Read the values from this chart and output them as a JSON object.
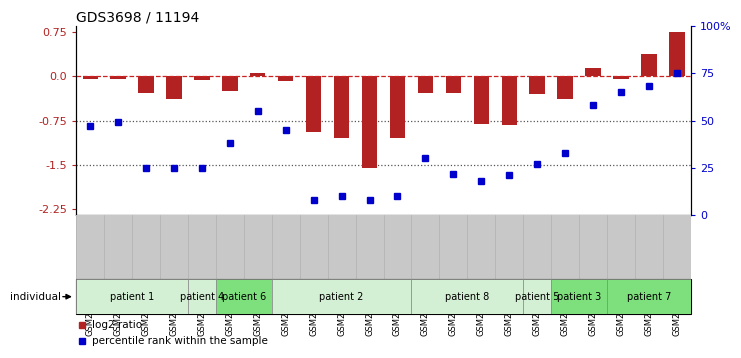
{
  "title": "GDS3698 / 11194",
  "samples": [
    "GSM279949",
    "GSM279950",
    "GSM279951",
    "GSM279952",
    "GSM279953",
    "GSM279954",
    "GSM279955",
    "GSM279956",
    "GSM279957",
    "GSM279959",
    "GSM279960",
    "GSM279962",
    "GSM279967",
    "GSM279970",
    "GSM279991",
    "GSM279992",
    "GSM279976",
    "GSM279982",
    "GSM280011",
    "GSM280014",
    "GSM280015",
    "GSM280016"
  ],
  "log2_ratio": [
    -0.05,
    -0.05,
    -0.28,
    -0.38,
    -0.06,
    -0.25,
    0.05,
    -0.08,
    -0.95,
    -1.05,
    -1.55,
    -1.05,
    -0.28,
    -0.28,
    -0.8,
    -0.82,
    -0.3,
    -0.38,
    0.14,
    -0.05,
    0.38,
    0.75
  ],
  "percentile_rank": [
    47,
    49,
    25,
    25,
    25,
    38,
    55,
    45,
    8,
    10,
    8,
    10,
    30,
    22,
    18,
    21,
    27,
    33,
    58,
    65,
    68,
    75
  ],
  "patients": [
    {
      "label": "patient 1",
      "start": 0,
      "end": 4,
      "color": "#d4f0d4"
    },
    {
      "label": "patient 4",
      "start": 4,
      "end": 5,
      "color": "#d4f0d4"
    },
    {
      "label": "patient 6",
      "start": 5,
      "end": 7,
      "color": "#7de07d"
    },
    {
      "label": "patient 2",
      "start": 7,
      "end": 12,
      "color": "#d4f0d4"
    },
    {
      "label": "patient 8",
      "start": 12,
      "end": 16,
      "color": "#d4f0d4"
    },
    {
      "label": "patient 5",
      "start": 16,
      "end": 17,
      "color": "#d4f0d4"
    },
    {
      "label": "patient 3",
      "start": 17,
      "end": 19,
      "color": "#7de07d"
    },
    {
      "label": "patient 7",
      "start": 19,
      "end": 22,
      "color": "#7de07d"
    }
  ],
  "bar_color": "#b22222",
  "dot_color": "#0000cc",
  "dashed_line_color": "#cc2222",
  "dotted_line_color": "#555555",
  "ylim_left": [
    -2.35,
    0.85
  ],
  "ylim_right": [
    0,
    100
  ],
  "yticks_left": [
    0.75,
    0.0,
    -0.75,
    -1.5,
    -2.25
  ],
  "yticks_right": [
    100,
    75,
    50,
    25,
    0
  ],
  "bg_color": "#ffffff",
  "plot_bg": "#ffffff",
  "xtick_bg": "#c8c8c8",
  "bar_width": 0.55
}
